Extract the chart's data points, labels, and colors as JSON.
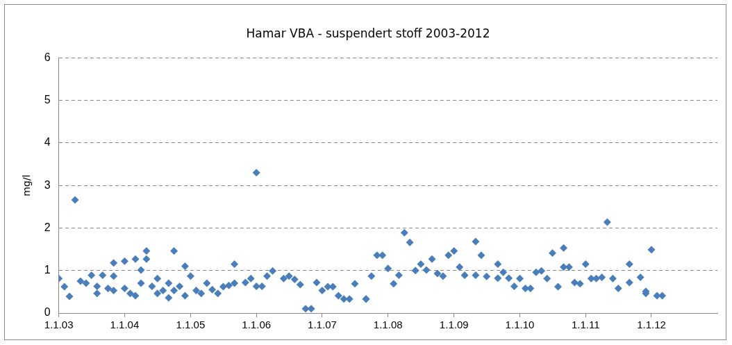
{
  "chart_data": {
    "type": "scatter",
    "title": "Hamar VBA - suspendert stoff 2003-2012",
    "ylabel": "mg/l",
    "x": [
      "2003-01",
      "2003-02",
      "2003-03",
      "2003-04",
      "2003-05",
      "2003-07",
      "2003-06",
      "2003-08",
      "2003-09",
      "2003-08",
      "2003-10",
      "2003-11",
      "2003-11",
      "2003-11",
      "2004-01",
      "2004-01",
      "2004-02",
      "2004-03",
      "2004-03",
      "2004-05",
      "2004-05",
      "2004-04",
      "2004-04",
      "2004-06",
      "2004-07",
      "2004-07",
      "2004-08",
      "2004-09",
      "2004-09",
      "2004-10",
      "2004-10",
      "2004-11",
      "2004-12",
      "2004-12",
      "2005-01",
      "2005-02",
      "2005-03",
      "2005-04",
      "2005-05",
      "2005-06",
      "2005-07",
      "2005-08",
      "2005-09",
      "2005-09",
      "2005-11",
      "2005-12",
      "2006-01",
      "2006-02",
      "2006-03",
      "2006-04",
      "2006-01",
      "2006-06",
      "2006-07",
      "2006-08",
      "2006-09",
      "2006-10",
      "2006-11",
      "2006-12",
      "2007-01",
      "2007-02",
      "2007-03",
      "2007-04",
      "2007-05",
      "2007-06",
      "2007-07",
      "2007-09",
      "2007-09",
      "2007-10",
      "2007-11",
      "2007-12",
      "2008-01",
      "2008-02",
      "2008-03",
      "2008-04",
      "2008-05",
      "2008-06",
      "2008-07",
      "2008-08",
      "2008-09",
      "2008-10",
      "2008-11",
      "2008-12",
      "2009-01",
      "2009-02",
      "2009-03",
      "2009-05",
      "2009-06",
      "2009-05",
      "2009-07",
      "2009-09",
      "2009-09",
      "2009-10",
      "2009-11",
      "2009-12",
      "2010-01",
      "2010-02",
      "2010-03",
      "2010-04",
      "2010-05",
      "2010-06",
      "2010-07",
      "2010-08",
      "2010-09",
      "2010-09",
      "2010-10",
      "2010-11",
      "2010-12",
      "2011-01",
      "2011-02",
      "2011-03",
      "2011-04",
      "2011-05",
      "2011-06",
      "2011-07",
      "2011-09",
      "2011-09",
      "2011-11",
      "2011-12",
      "2011-12",
      "2012-01",
      "2012-02",
      "2012-03"
    ],
    "series": [
      {
        "color": "#4a7ebb",
        "values": [
          0.81,
          0.62,
          0.39,
          2.66,
          0.75,
          0.89,
          0.7,
          0.46,
          0.89,
          0.63,
          0.58,
          1.18,
          0.87,
          0.53,
          1.22,
          0.58,
          0.46,
          1.27,
          0.41,
          1.46,
          1.27,
          1.01,
          0.7,
          0.63,
          0.46,
          0.81,
          0.53,
          0.36,
          0.7,
          0.53,
          1.46,
          0.63,
          0.41,
          1.1,
          0.87,
          0.53,
          0.46,
          0.7,
          0.55,
          0.46,
          0.62,
          0.65,
          1.15,
          0.7,
          0.72,
          0.81,
          0.63,
          0.63,
          0.87,
          0.99,
          3.3,
          0.81,
          0.87,
          0.79,
          0.67,
          0.1,
          0.1,
          0.72,
          0.53,
          0.62,
          0.62,
          0.41,
          0.33,
          0.33,
          0.69,
          0.33,
          0.33,
          0.87,
          1.36,
          1.36,
          1.05,
          0.69,
          0.89,
          1.89,
          1.66,
          1.0,
          1.15,
          1.01,
          1.27,
          0.93,
          0.87,
          1.36,
          1.46,
          1.08,
          0.89,
          1.68,
          1.36,
          0.89,
          0.86,
          0.82,
          1.15,
          0.96,
          0.82,
          0.63,
          0.81,
          0.58,
          0.58,
          0.96,
          0.99,
          0.81,
          1.41,
          0.62,
          1.08,
          1.53,
          1.08,
          0.72,
          0.69,
          1.15,
          0.81,
          0.81,
          0.84,
          2.14,
          0.81,
          0.58,
          0.72,
          1.15,
          0.84,
          0.46,
          0.51,
          1.49,
          0.41,
          0.41
        ]
      }
    ],
    "xlim": [
      "2003-01-01",
      "2013-01-01"
    ],
    "xticks": [
      {
        "value": "2003-01-01",
        "label": "1.1.03"
      },
      {
        "value": "2004-01-01",
        "label": "1.1.04"
      },
      {
        "value": "2005-01-01",
        "label": "1.1.05"
      },
      {
        "value": "2006-01-01",
        "label": "1.1.06"
      },
      {
        "value": "2007-01-01",
        "label": "1.1.07"
      },
      {
        "value": "2008-01-01",
        "label": "1.1.08"
      },
      {
        "value": "2009-01-01",
        "label": "1.1.09"
      },
      {
        "value": "2010-01-01",
        "label": "1.1.10"
      },
      {
        "value": "2011-01-01",
        "label": "1.1.11"
      },
      {
        "value": "2012-01-01",
        "label": "1.1.12"
      }
    ],
    "ylim": [
      0,
      6
    ],
    "yticks": [
      0,
      1,
      2,
      3,
      4,
      5,
      6
    ],
    "grid": "y",
    "legend": false,
    "marker": "diamond"
  }
}
